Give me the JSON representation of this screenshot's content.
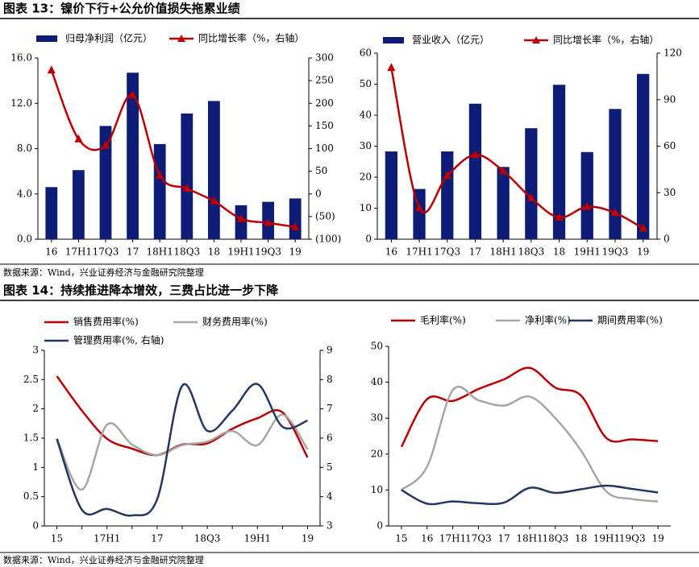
{
  "headings": [
    "图表 13：镍价下行+公允价值损失拖累业绩",
    "图表 14：持续推进降本增效，三费占比进一步下降"
  ],
  "sources": [
    "数据来源：Wind，兴业证券经济与金融研究院整理",
    "数据来源：Wind，兴业证券经济与金融研究院整理"
  ],
  "chart_data": [
    {
      "type": "bar",
      "categories": [
        "16",
        "17H1",
        "17Q3",
        "17",
        "18H1",
        "18Q3",
        "18",
        "19H1",
        "19Q3",
        "19"
      ],
      "series": [
        {
          "name": "归母净利润（亿元）",
          "color": "#0d1c77",
          "type": "bar",
          "values": [
            4.6,
            6.1,
            10.0,
            14.7,
            8.4,
            11.1,
            12.2,
            3.0,
            3.3,
            3.6
          ]
        },
        {
          "name": "同比增长率（%，右轴）",
          "color": "#c00000",
          "type": "line",
          "axis": "y2",
          "values": [
            273,
            121,
            107,
            218,
            41,
            12,
            -16,
            -55,
            -64,
            -73
          ]
        }
      ],
      "ylim": [
        0,
        16
      ],
      "yticks": [
        {
          "value": 0,
          "label": "0.0"
        },
        {
          "value": 4,
          "label": "4.0"
        },
        {
          "value": 8,
          "label": "8.0"
        },
        {
          "value": 12,
          "label": "12.0"
        },
        {
          "value": 16,
          "label": "16.0"
        }
      ],
      "y2lim": [
        -100,
        300
      ],
      "y2ticks": [
        {
          "value": -100,
          "label": "(100)"
        },
        {
          "value": -50,
          "label": "(50)"
        },
        0,
        50,
        100,
        150,
        200,
        250,
        300
      ]
    },
    {
      "type": "bar",
      "categories": [
        "16",
        "17H1",
        "17Q3",
        "17",
        "18H1",
        "18Q3",
        "18",
        "19H1",
        "19Q3",
        "19"
      ],
      "series": [
        {
          "name": "营业收入（亿元）",
          "color": "#0d1c77",
          "type": "bar",
          "values": [
            28.3,
            16.2,
            28.3,
            43.7,
            23.3,
            35.8,
            49.8,
            28.1,
            42.0,
            53.3
          ]
        },
        {
          "name": "同比增长率（%，右轴）",
          "color": "#c00000",
          "type": "line",
          "axis": "y2",
          "values": [
            110.6,
            20,
            41,
            54.5,
            44,
            26.5,
            14,
            21,
            17,
            7
          ]
        }
      ],
      "ylim": [
        0,
        60
      ],
      "yticks": [
        0,
        10,
        20,
        30,
        40,
        50,
        60
      ],
      "y2lim": [
        0,
        120
      ],
      "y2ticks": [
        0,
        30,
        60,
        90,
        120
      ]
    },
    {
      "type": "line",
      "categories": [
        "15",
        null,
        "17H1",
        null,
        "17",
        null,
        "18Q3",
        null,
        "19H1",
        null,
        "19"
      ],
      "series": [
        {
          "name": "销售费用率(%)",
          "color": "#c00000",
          "values": [
            2.56,
            1.97,
            1.49,
            1.32,
            1.21,
            1.39,
            1.41,
            1.66,
            1.84,
            1.94,
            1.17
          ]
        },
        {
          "name": "财务费用率(%)",
          "color": "#a6a6a6",
          "values": [
            1.49,
            0.62,
            1.73,
            1.39,
            1.21,
            1.38,
            1.44,
            1.62,
            1.38,
            1.9,
            1.31
          ]
        },
        {
          "name": "管理费用率(%, 右轴)",
          "color": "#1f3864",
          "axis": "y2",
          "values": [
            5.97,
            3.55,
            3.58,
            3.36,
            3.91,
            7.79,
            6.25,
            6.94,
            7.85,
            6.39,
            6.6
          ]
        }
      ],
      "ylim": [
        0,
        3
      ],
      "yticks": [
        0,
        0.5,
        1,
        1.5,
        2,
        2.5,
        3
      ],
      "y2lim": [
        3,
        9
      ],
      "y2ticks": [
        3,
        4,
        5,
        6,
        7,
        8,
        9
      ]
    },
    {
      "type": "line",
      "categories": [
        "15",
        "16",
        "17H1",
        "17Q3",
        "17",
        "18H1",
        "18Q3",
        "18",
        "19H1",
        "19Q3",
        "19"
      ],
      "series": [
        {
          "name": "毛利率(%)",
          "color": "#c00000",
          "values": [
            22,
            35.3,
            34.8,
            38.1,
            40.8,
            44,
            38.5,
            36.3,
            24.4,
            24.1,
            23.6
          ]
        },
        {
          "name": "净利率(%)",
          "color": "#a6a6a6",
          "values": [
            10,
            16.5,
            37.8,
            35,
            33.5,
            36,
            30,
            21,
            9.5,
            7.5,
            6.8
          ]
        },
        {
          "name": "期间费用率(%)",
          "color": "#1f3864",
          "values": [
            10,
            6.2,
            6.8,
            6.3,
            6.5,
            10.6,
            9.2,
            10.2,
            11.2,
            10.3,
            9.3
          ]
        }
      ],
      "ylim": [
        0,
        50
      ],
      "yticks": [
        0,
        10,
        20,
        30,
        40,
        50
      ]
    }
  ]
}
